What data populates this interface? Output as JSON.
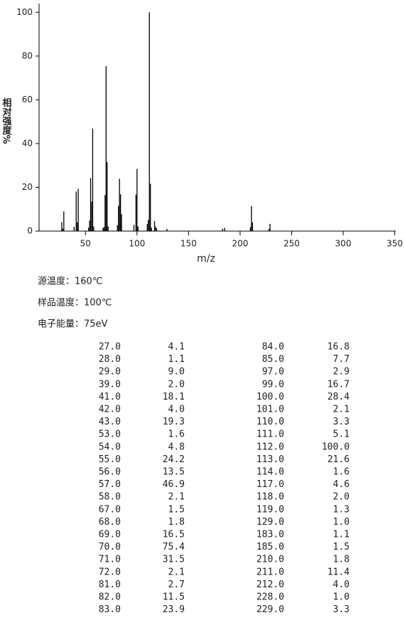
{
  "chart_data": {
    "type": "bar",
    "color": "#000000",
    "xlabel": "m/z",
    "ylabel": "相对强度%",
    "x": [
      27,
      28,
      29,
      39,
      41,
      42,
      43,
      53,
      54,
      55,
      56,
      57,
      58,
      67,
      68,
      69,
      70,
      71,
      72,
      81,
      82,
      83,
      84,
      85,
      97,
      99,
      100,
      101,
      110,
      111,
      112,
      113,
      114,
      117,
      118,
      119,
      129,
      183,
      185,
      210,
      211,
      212,
      228,
      229
    ],
    "values": [
      4.1,
      1.1,
      9.0,
      2.0,
      18.1,
      4.0,
      19.3,
      1.6,
      4.8,
      24.2,
      13.5,
      46.9,
      2.1,
      1.5,
      1.8,
      16.5,
      75.4,
      31.5,
      2.1,
      2.7,
      11.5,
      23.9,
      16.8,
      7.7,
      2.9,
      16.7,
      28.4,
      2.1,
      3.3,
      5.1,
      100.0,
      21.6,
      1.6,
      4.6,
      2.0,
      1.3,
      1.0,
      1.1,
      1.5,
      1.8,
      11.4,
      4.0,
      1.0,
      3.3
    ],
    "xlim": [
      5,
      351
    ],
    "ylim": [
      0,
      104
    ],
    "xticks": [
      50,
      100,
      150,
      200,
      250,
      300,
      350
    ],
    "yticks": [
      0,
      20,
      40,
      60,
      80,
      100
    ]
  },
  "info": [
    "源温度：160℃",
    "样品温度：100℃",
    "电子能量：75eV"
  ],
  "table": {
    "rows": [
      [
        "27.0",
        "4.1",
        "84.0",
        "16.8"
      ],
      [
        "28.0",
        "1.1",
        "85.0",
        "7.7"
      ],
      [
        "29.0",
        "9.0",
        "97.0",
        "2.9"
      ],
      [
        "39.0",
        "2.0",
        "99.0",
        "16.7"
      ],
      [
        "41.0",
        "18.1",
        "100.0",
        "28.4"
      ],
      [
        "42.0",
        "4.0",
        "101.0",
        "2.1"
      ],
      [
        "43.0",
        "19.3",
        "110.0",
        "3.3"
      ],
      [
        "53.0",
        "1.6",
        "111.0",
        "5.1"
      ],
      [
        "54.0",
        "4.8",
        "112.0",
        "100.0"
      ],
      [
        "55.0",
        "24.2",
        "113.0",
        "21.6"
      ],
      [
        "56.0",
        "13.5",
        "114.0",
        "1.6"
      ],
      [
        "57.0",
        "46.9",
        "117.0",
        "4.6"
      ],
      [
        "58.0",
        "2.1",
        "118.0",
        "2.0"
      ],
      [
        "67.0",
        "1.5",
        "119.0",
        "1.3"
      ],
      [
        "68.0",
        "1.8",
        "129.0",
        "1.0"
      ],
      [
        "69.0",
        "16.5",
        "183.0",
        "1.1"
      ],
      [
        "70.0",
        "75.4",
        "185.0",
        "1.5"
      ],
      [
        "71.0",
        "31.5",
        "210.0",
        "1.8"
      ],
      [
        "72.0",
        "2.1",
        "211.0",
        "11.4"
      ],
      [
        "81.0",
        "2.7",
        "212.0",
        "4.0"
      ],
      [
        "82.0",
        "11.5",
        "228.0",
        "1.0"
      ],
      [
        "83.0",
        "23.9",
        "229.0",
        "3.3"
      ]
    ]
  }
}
